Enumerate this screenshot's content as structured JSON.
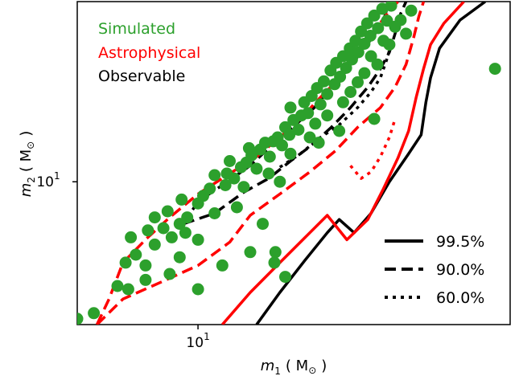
{
  "chart_data": {
    "type": "scatter",
    "xlabel_symbol": "m",
    "xlabel_sub": "1",
    "xlabel_unit": "( M",
    "xlabel_close": ")",
    "ylabel_symbol": "m",
    "ylabel_sub": "2",
    "ylabel_unit": "( M",
    "ylabel_close": ")",
    "x_scale": "log",
    "y_scale": "log",
    "xlim": [
      5.0,
      60.0
    ],
    "ylim": [
      4.3,
      29.0
    ],
    "x_tick_labels": [
      {
        "value": 10,
        "base": "10",
        "exp": "1"
      }
    ],
    "y_tick_labels": [
      {
        "value": 10,
        "base": "10",
        "exp": "1"
      }
    ],
    "series_labels": [
      {
        "text": "Simulated",
        "color": "#2ca02c"
      },
      {
        "text": "Astrophysical",
        "color": "#ff0000"
      },
      {
        "text": "Observable",
        "color": "#000000"
      }
    ],
    "contour_legend": [
      {
        "label": "99.5%",
        "style": "solid"
      },
      {
        "label": "90.0%",
        "style": "dashed"
      },
      {
        "label": "60.0%",
        "style": "dotted"
      }
    ],
    "points": [
      {
        "x": 5.0,
        "y": 4.45
      },
      {
        "x": 5.5,
        "y": 4.6
      },
      {
        "x": 6.3,
        "y": 5.4
      },
      {
        "x": 6.7,
        "y": 5.3
      },
      {
        "x": 6.6,
        "y": 6.2
      },
      {
        "x": 7.0,
        "y": 6.5
      },
      {
        "x": 7.4,
        "y": 6.1
      },
      {
        "x": 6.8,
        "y": 7.2
      },
      {
        "x": 7.5,
        "y": 7.5
      },
      {
        "x": 7.8,
        "y": 6.9
      },
      {
        "x": 8.2,
        "y": 7.6
      },
      {
        "x": 7.8,
        "y": 8.1
      },
      {
        "x": 8.4,
        "y": 8.4
      },
      {
        "x": 8.6,
        "y": 7.2
      },
      {
        "x": 9.0,
        "y": 7.8
      },
      {
        "x": 9.3,
        "y": 7.4
      },
      {
        "x": 9.4,
        "y": 8.1
      },
      {
        "x": 9.1,
        "y": 9.0
      },
      {
        "x": 10.0,
        "y": 8.8
      },
      {
        "x": 10.3,
        "y": 9.2
      },
      {
        "x": 10.7,
        "y": 9.6
      },
      {
        "x": 11.0,
        "y": 10.4
      },
      {
        "x": 11.7,
        "y": 9.8
      },
      {
        "x": 11.8,
        "y": 10.5
      },
      {
        "x": 12.3,
        "y": 10.2
      },
      {
        "x": 12.0,
        "y": 11.3
      },
      {
        "x": 12.8,
        "y": 10.9
      },
      {
        "x": 13.2,
        "y": 11.2
      },
      {
        "x": 13.6,
        "y": 11.7
      },
      {
        "x": 14.0,
        "y": 10.8
      },
      {
        "x": 13.4,
        "y": 12.2
      },
      {
        "x": 14.3,
        "y": 12.1
      },
      {
        "x": 14.7,
        "y": 12.6
      },
      {
        "x": 15.1,
        "y": 11.6
      },
      {
        "x": 15.4,
        "y": 12.7
      },
      {
        "x": 15.8,
        "y": 13.0
      },
      {
        "x": 16.2,
        "y": 12.4
      },
      {
        "x": 16.5,
        "y": 13.8
      },
      {
        "x": 16.9,
        "y": 13.2
      },
      {
        "x": 17.3,
        "y": 14.4
      },
      {
        "x": 17.0,
        "y": 15.5
      },
      {
        "x": 17.8,
        "y": 13.6
      },
      {
        "x": 18.1,
        "y": 14.8
      },
      {
        "x": 18.4,
        "y": 16.0
      },
      {
        "x": 18.8,
        "y": 15.0
      },
      {
        "x": 19.2,
        "y": 16.6
      },
      {
        "x": 19.6,
        "y": 14.1
      },
      {
        "x": 19.8,
        "y": 17.4
      },
      {
        "x": 20.2,
        "y": 15.8
      },
      {
        "x": 20.6,
        "y": 18.1
      },
      {
        "x": 21.0,
        "y": 16.8
      },
      {
        "x": 21.4,
        "y": 19.3
      },
      {
        "x": 21.9,
        "y": 17.8
      },
      {
        "x": 22.1,
        "y": 20.2
      },
      {
        "x": 22.6,
        "y": 18.6
      },
      {
        "x": 23.0,
        "y": 21.0
      },
      {
        "x": 23.4,
        "y": 19.6
      },
      {
        "x": 23.9,
        "y": 22.0
      },
      {
        "x": 24.2,
        "y": 20.6
      },
      {
        "x": 24.7,
        "y": 23.0
      },
      {
        "x": 25.1,
        "y": 21.5
      },
      {
        "x": 25.5,
        "y": 24.3
      },
      {
        "x": 26.0,
        "y": 22.6
      },
      {
        "x": 26.4,
        "y": 25.5
      },
      {
        "x": 26.9,
        "y": 23.7
      },
      {
        "x": 27.5,
        "y": 26.7
      },
      {
        "x": 28.1,
        "y": 24.8
      },
      {
        "x": 28.8,
        "y": 27.8
      },
      {
        "x": 29.6,
        "y": 25.9
      },
      {
        "x": 30.3,
        "y": 28.3
      },
      {
        "x": 29.0,
        "y": 23.0
      },
      {
        "x": 27.0,
        "y": 21.0
      },
      {
        "x": 25.0,
        "y": 18.0
      },
      {
        "x": 23.0,
        "y": 16.0
      },
      {
        "x": 21.0,
        "y": 14.8
      },
      {
        "x": 19.0,
        "y": 13.0
      },
      {
        "x": 17.0,
        "y": 11.8
      },
      {
        "x": 15.0,
        "y": 10.5
      },
      {
        "x": 13.0,
        "y": 9.7
      },
      {
        "x": 11.0,
        "y": 8.3
      },
      {
        "x": 10.0,
        "y": 7.1
      },
      {
        "x": 9.0,
        "y": 6.4
      },
      {
        "x": 8.5,
        "y": 5.8
      },
      {
        "x": 7.4,
        "y": 5.6
      },
      {
        "x": 24.0,
        "y": 17.0
      },
      {
        "x": 26.0,
        "y": 19.0
      },
      {
        "x": 28.0,
        "y": 20.0
      },
      {
        "x": 30.0,
        "y": 22.5
      },
      {
        "x": 32.0,
        "y": 26.0
      },
      {
        "x": 34.0,
        "y": 27.5
      },
      {
        "x": 31.0,
        "y": 25.0
      },
      {
        "x": 33.0,
        "y": 24.0
      },
      {
        "x": 55.0,
        "y": 19.5
      },
      {
        "x": 27.5,
        "y": 14.5
      },
      {
        "x": 22.5,
        "y": 13.5
      },
      {
        "x": 20.0,
        "y": 12.6
      },
      {
        "x": 16.0,
        "y": 10.0
      },
      {
        "x": 12.5,
        "y": 8.6
      },
      {
        "x": 14.5,
        "y": 7.8
      },
      {
        "x": 15.5,
        "y": 6.2
      },
      {
        "x": 15.6,
        "y": 6.6
      },
      {
        "x": 16.5,
        "y": 5.7
      },
      {
        "x": 13.5,
        "y": 6.6
      },
      {
        "x": 11.5,
        "y": 6.1
      },
      {
        "x": 10.0,
        "y": 5.3
      }
    ],
    "contours": [
      {
        "group": "observable",
        "style": "solid",
        "points": [
          [
            14.0,
            4.3
          ],
          [
            16.0,
            5.2
          ],
          [
            18.5,
            6.3
          ],
          [
            21.0,
            7.4
          ],
          [
            22.5,
            8.0
          ],
          [
            24.5,
            7.4
          ],
          [
            27.0,
            8.3
          ],
          [
            30.0,
            10.0
          ],
          [
            33.5,
            11.8
          ],
          [
            36.0,
            13.2
          ],
          [
            37.0,
            16.0
          ],
          [
            38.0,
            18.5
          ],
          [
            40.0,
            22.0
          ],
          [
            45.0,
            26.0
          ],
          [
            52.0,
            29.0
          ]
        ]
      },
      {
        "group": "astrophysical",
        "style": "solid",
        "points": [
          [
            11.5,
            4.3
          ],
          [
            13.5,
            5.2
          ],
          [
            16.0,
            6.2
          ],
          [
            18.5,
            7.2
          ],
          [
            21.0,
            8.2
          ],
          [
            23.5,
            7.1
          ],
          [
            26.5,
            8.0
          ],
          [
            29.0,
            9.6
          ],
          [
            31.5,
            11.5
          ],
          [
            33.5,
            13.5
          ],
          [
            35.0,
            16.5
          ],
          [
            36.5,
            19.5
          ],
          [
            38.0,
            22.5
          ],
          [
            41.0,
            25.5
          ],
          [
            46.0,
            29.0
          ]
        ]
      },
      {
        "group": "observable",
        "style": "dashed",
        "points": [
          [
            9.2,
            7.8
          ],
          [
            11.0,
            8.3
          ],
          [
            13.0,
            9.4
          ],
          [
            15.0,
            10.2
          ],
          [
            17.0,
            11.3
          ],
          [
            19.0,
            12.3
          ],
          [
            21.5,
            13.8
          ],
          [
            24.0,
            15.5
          ],
          [
            26.5,
            17.5
          ],
          [
            28.5,
            19.5
          ],
          [
            30.0,
            21.5
          ],
          [
            31.0,
            24.0
          ],
          [
            32.0,
            27.0
          ],
          [
            33.0,
            29.0
          ]
        ]
      },
      {
        "group": "observable",
        "style": "dashed",
        "points": [
          [
            9.2,
            7.8
          ],
          [
            10.0,
            8.9
          ],
          [
            11.5,
            9.8
          ],
          [
            13.5,
            11.0
          ],
          [
            15.5,
            12.6
          ],
          [
            17.5,
            14.0
          ],
          [
            19.5,
            15.5
          ],
          [
            21.5,
            17.5
          ],
          [
            23.5,
            19.3
          ],
          [
            25.5,
            21.5
          ],
          [
            27.5,
            23.8
          ],
          [
            29.0,
            26.0
          ],
          [
            30.0,
            29.0
          ]
        ]
      },
      {
        "group": "astrophysical",
        "style": "dashed",
        "points": [
          [
            5.6,
            4.3
          ],
          [
            6.5,
            5.0
          ],
          [
            8.0,
            5.5
          ],
          [
            10.0,
            6.1
          ],
          [
            12.0,
            7.0
          ],
          [
            13.5,
            8.2
          ],
          [
            16.0,
            9.3
          ],
          [
            19.0,
            10.6
          ],
          [
            22.0,
            12.0
          ],
          [
            25.0,
            13.8
          ],
          [
            28.5,
            15.5
          ],
          [
            31.0,
            17.5
          ],
          [
            33.0,
            20.0
          ],
          [
            34.5,
            23.5
          ],
          [
            35.5,
            26.5
          ],
          [
            36.5,
            29.0
          ]
        ]
      },
      {
        "group": "astrophysical",
        "style": "dashed",
        "points": [
          [
            5.6,
            4.3
          ],
          [
            6.0,
            5.0
          ],
          [
            6.5,
            6.2
          ],
          [
            7.5,
            7.2
          ],
          [
            8.5,
            8.1
          ],
          [
            10.0,
            9.3
          ],
          [
            12.0,
            10.5
          ],
          [
            14.0,
            11.6
          ],
          [
            16.0,
            13.0
          ],
          [
            18.0,
            14.5
          ],
          [
            20.0,
            16.3
          ],
          [
            22.0,
            18.0
          ],
          [
            24.0,
            20.0
          ],
          [
            26.0,
            22.5
          ],
          [
            28.0,
            25.0
          ],
          [
            30.0,
            27.5
          ],
          [
            31.5,
            29.0
          ]
        ]
      },
      {
        "group": "observable",
        "style": "dotted",
        "points": [
          [
            16.0,
            10.9
          ],
          [
            18.0,
            11.8
          ],
          [
            20.0,
            12.9
          ],
          [
            22.5,
            14.0
          ],
          [
            25.0,
            15.5
          ],
          [
            27.0,
            17.0
          ],
          [
            28.5,
            18.5
          ],
          [
            29.5,
            20.5
          ],
          [
            30.5,
            23.0
          ]
        ]
      },
      {
        "group": "astrophysical",
        "style": "dotted",
        "points": [
          [
            24.0,
            11.0
          ],
          [
            25.5,
            10.2
          ],
          [
            27.0,
            10.6
          ],
          [
            28.5,
            11.6
          ],
          [
            30.0,
            13.0
          ],
          [
            31.0,
            14.5
          ]
        ]
      }
    ],
    "legend_text_position": "top-left",
    "contour_legend_position": "lower-right",
    "grid": false
  }
}
